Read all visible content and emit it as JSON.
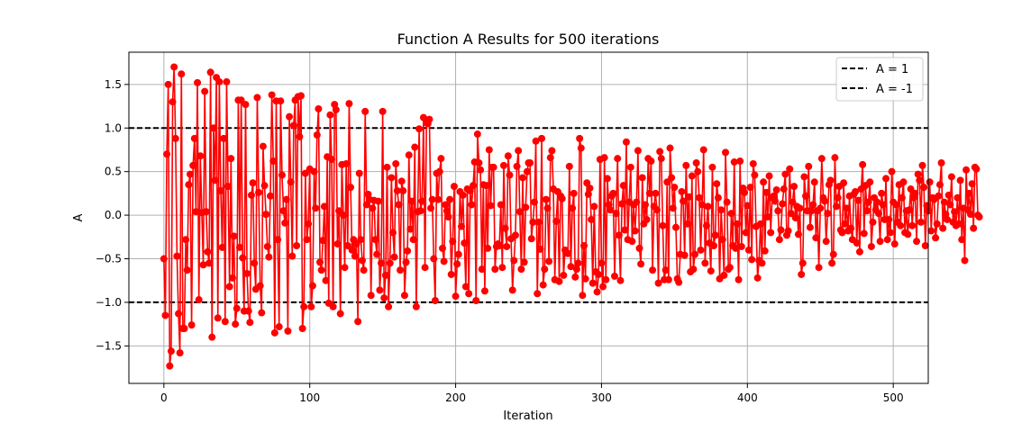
{
  "chart_data": {
    "type": "line",
    "title": "Function A Results for 500 iterations",
    "xlabel": "Iteration",
    "ylabel": "A",
    "xlim": [
      -24,
      524
    ],
    "ylim": [
      -1.93,
      1.87
    ],
    "xticks": [
      0,
      100,
      200,
      300,
      400,
      500
    ],
    "xtick_labels": [
      "0",
      "100",
      "200",
      "300",
      "400",
      "500"
    ],
    "yticks": [
      -1.5,
      -1.0,
      -0.5,
      0.0,
      0.5,
      1.0,
      1.5
    ],
    "ytick_labels": [
      "−1.5",
      "−1.0",
      "−0.5",
      "0.0",
      "0.5",
      "1.0",
      "1.5"
    ],
    "grid": true,
    "legend_position": "top-right",
    "colors": {
      "series": "#ff0000",
      "reference": "#000000",
      "grid": "#b0b0b0"
    },
    "series": [
      {
        "style": "solid line with circle markers",
        "color": "#ff0000",
        "x_start": 0,
        "x_step": 1,
        "values": [
          -0.5,
          -1.15,
          0.7,
          1.5,
          -1.73,
          -1.56,
          1.3,
          1.7,
          0.88,
          -0.47,
          -1.13,
          -1.58,
          1.62,
          -1.3,
          -1.3,
          -0.28,
          -0.63,
          0.35,
          0.47,
          -1.26,
          0.57,
          0.88,
          0.04,
          1.52,
          -0.97,
          0.68,
          0.03,
          -0.57,
          1.42,
          0.04,
          -0.42,
          -0.55,
          1.64,
          -1.4,
          1.0,
          0.4,
          1.58,
          -1.18,
          1.53,
          0.28,
          -0.37,
          0.88,
          -1.22,
          1.53,
          0.33,
          -0.82,
          0.65,
          -0.72,
          -0.24,
          -1.25,
          -1.07,
          1.32,
          -0.37,
          1.32,
          -0.49,
          -1.1,
          1.27,
          -0.67,
          -1.1,
          -1.23,
          0.23,
          0.37,
          -0.55,
          -0.85,
          1.35,
          0.26,
          -0.81,
          -1.12,
          0.79,
          0.34,
          0.01,
          -0.36,
          -0.48,
          0.22,
          1.38,
          0.62,
          -1.35,
          1.31,
          -0.28,
          -1.28,
          1.31,
          0.46,
          0.05,
          -0.09,
          0.18,
          -1.33,
          1.13,
          0.38,
          -0.47,
          1.03,
          1.32,
          -0.35,
          1.36,
          0.9,
          1.37,
          -1.3,
          -1.05,
          0.48,
          -0.28,
          -0.1,
          0.53,
          -1.05,
          -0.81,
          0.5,
          0.08,
          0.92,
          1.22,
          -0.54,
          -0.63,
          -0.29,
          0.1,
          -0.75,
          0.67,
          -1.01,
          1.15,
          0.64,
          -1.05,
          1.27,
          1.21,
          -0.33,
          0.05,
          -1.13,
          0.58,
          0.0,
          -0.6,
          0.59,
          -0.35,
          1.28,
          0.32,
          -0.4,
          -0.28,
          -0.47,
          -0.33,
          -1.22,
          0.48,
          -0.28,
          -0.52,
          -0.63,
          1.19,
          0.12,
          0.24,
          0.18,
          -0.92,
          0.08,
          0.17,
          -0.28,
          -0.45,
          0.16,
          -0.86,
          -0.55,
          1.19,
          -0.95,
          -0.69,
          0.55,
          -1.05,
          -0.55,
          0.43,
          -0.2,
          -0.48,
          0.59,
          0.28,
          0.12,
          -0.63,
          0.39,
          0.28,
          -0.92,
          -0.54,
          -0.41,
          0.69,
          -0.16,
          0.16,
          -0.28,
          0.78,
          -1.05,
          0.04,
          0.99,
          0.05,
          0.16,
          1.12,
          -0.6,
          1.06,
          1.05,
          1.1,
          0.08,
          0.18,
          -0.5,
          -0.98,
          0.48,
          0.18,
          0.5,
          0.65,
          -0.38,
          -0.53,
          0.12,
          0.05,
          -0.02,
          0.18,
          -0.68,
          -0.3,
          0.33,
          -0.93,
          -0.56,
          -0.45,
          0.27,
          -0.13,
          0.23,
          -0.32,
          -0.82,
          0.3,
          -0.9,
          0.28,
          0.12,
          0.34,
          0.61,
          -0.98,
          0.93,
          0.6,
          0.52,
          -0.62,
          0.35,
          -0.87,
          0.34,
          -0.38,
          0.75,
          0.11,
          0.55,
          0.55,
          -0.62,
          -0.36,
          -0.33,
          -0.35,
          0.12,
          -0.6,
          0.57,
          -0.15,
          -0.36,
          0.68,
          0.46,
          -0.27,
          -0.86,
          -0.52,
          -0.23,
          0.56,
          0.74,
          0.04,
          -0.62,
          0.43,
          -0.54,
          0.09,
          0.5,
          0.6,
          0.6,
          -0.27,
          -0.08,
          0.15,
          0.85,
          -0.9,
          -0.08,
          -0.39,
          0.88,
          -0.8,
          -0.62,
          0.18,
          0.08,
          -0.53,
          0.66,
          0.74,
          0.3,
          -0.74,
          -0.07,
          0.27,
          -0.76,
          0.22,
          0.19,
          -0.69,
          -0.4,
          -0.43,
          -0.44,
          0.56,
          -0.59,
          0.08,
          0.25,
          -0.71,
          -0.62,
          -0.55,
          0.88,
          0.77,
          -0.92,
          -0.35,
          -0.73,
          0.37,
          0.24,
          0.31,
          -0.05,
          -0.78,
          0.1,
          -0.65,
          -0.88,
          -0.68,
          0.64,
          -0.55,
          -0.82,
          0.66,
          -0.74,
          0.42,
          0.12,
          0.06,
          0.22,
          0.25,
          -0.7,
          0.02,
          0.65,
          -0.23,
          -0.75,
          0.13,
          0.34,
          -0.17,
          0.84,
          -0.28,
          0.15,
          0.55,
          -0.3,
          0.12,
          -0.18,
          0.15,
          0.74,
          -0.38,
          -0.56,
          0.43,
          -0.1,
          0.12,
          -0.05,
          0.65,
          0.25,
          0.62,
          -0.63,
          0.1,
          0.25,
          0.06,
          -0.78,
          0.73,
          0.65,
          -0.12,
          -0.74,
          -0.63,
          0.38,
          -0.74,
          0.77,
          0.43,
          0.08,
          0.32,
          -0.14,
          -0.73,
          -0.77,
          -0.45,
          0.27,
          0.16,
          -0.46,
          0.57,
          -0.1,
          0.21,
          -0.65,
          0.45,
          -0.62,
          -0.45,
          0.6,
          0.5,
          0.2,
          -0.4,
          0.12,
          0.75,
          -0.55,
          -0.12,
          0.1,
          -0.32,
          -0.64,
          0.55,
          -0.35,
          -0.23,
          0.36,
          0.2,
          -0.73,
          0.06,
          -0.28,
          -0.69,
          0.72,
          0.15,
          -0.62,
          -0.6,
          0.02,
          -0.35,
          0.61,
          -0.38,
          -0.1,
          -0.74,
          0.62,
          -0.36,
          0.31,
          0.26,
          -0.2,
          0.11,
          -0.4,
          0.32,
          -0.51,
          0.59,
          0.46,
          -0.13,
          -0.72,
          -0.52,
          -0.1,
          -0.55,
          0.38,
          -0.41,
          0.26,
          -0.02,
          0.45,
          -0.2,
          0.2,
          0.22,
          0.16,
          0.29,
          0.05,
          -0.28,
          -0.17,
          0.13,
          0.3,
          0.47,
          -0.23,
          -0.18,
          0.53,
          0.02,
          0.15,
          0.33,
          -0.03,
          0.1,
          -0.22,
          0.08,
          -0.68,
          -0.55,
          0.44,
          0.22,
          0.05,
          0.56,
          -0.14,
          0.05,
          0.12,
          0.38,
          -0.26,
          0.05,
          -0.6,
          0.08,
          0.65,
          0.2,
          0.16,
          -0.3,
          0.02,
          0.35,
          0.4,
          -0.55,
          -0.45,
          0.66,
          0.1,
          0.2,
          0.33,
          -0.17,
          -0.2,
          0.37,
          -0.1,
          0.08,
          -0.18,
          0.22,
          -0.15,
          -0.28,
          0.24,
          0.27,
          -0.32,
          0.17,
          -0.42,
          0.3,
          0.58,
          -0.21,
          0.34,
          0.05,
          0.15,
          0.38,
          -0.36,
          -0.08,
          0.2,
          0.06,
          0.15,
          0.02,
          -0.3,
          0.25,
          0.12,
          -0.05,
          0.42,
          -0.28,
          -0.05,
          -0.2,
          0.5,
          0.15,
          -0.33,
          0.12,
          -0.08,
          0.35,
          -0.12,
          0.2,
          0.38,
          -0.2,
          0.05,
          -0.22,
          0.06,
          0.3,
          -0.12,
          0.2,
          0.25,
          -0.3,
          0.47,
          0.4,
          -0.08,
          0.57,
          0.32,
          -0.35,
          0.11,
          0.05,
          0.38,
          -0.18,
          0.2,
          0.18,
          -0.26,
          -0.1,
          0.22,
          0.35,
          0.6,
          -0.15,
          0.15,
          0.01,
          -0.05,
          0.23,
          0.12,
          0.44,
          -0.08,
          0.04,
          -0.12,
          0.2,
          -0.1,
          0.4,
          -0.28,
          0.08,
          -0.52,
          0.52,
          0.06,
          0.25,
          0.01,
          0.36,
          -0.15,
          0.55,
          0.53,
          0.0,
          -0.02
        ]
      }
    ],
    "reference_lines": [
      {
        "label": "A = 1",
        "value": 1,
        "style": "dashed",
        "color": "#000000"
      },
      {
        "label": "A = -1",
        "value": -1,
        "style": "dashed",
        "color": "#000000"
      }
    ]
  }
}
